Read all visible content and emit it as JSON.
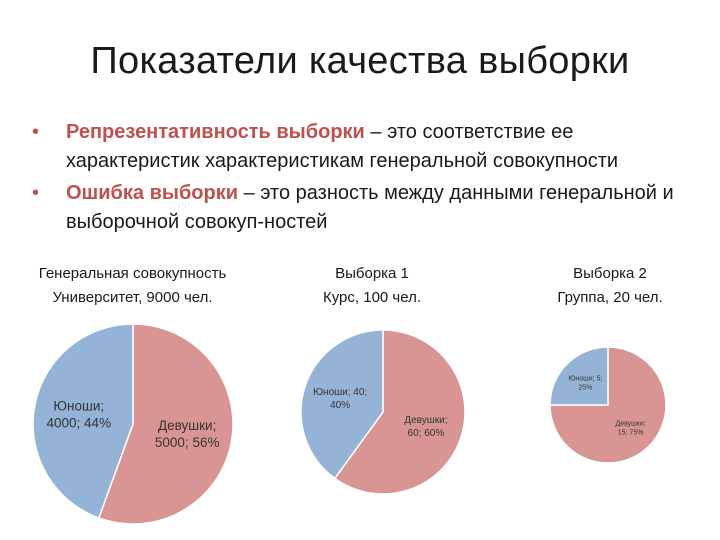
{
  "slide": {
    "title": "Показатели качества выборки",
    "bullets": [
      {
        "term": "Репрезентативность выборки",
        "text": " – это соответствие ее характеристик характеристикам генеральной совокупности"
      },
      {
        "term": "Ошибка выборки",
        "text": " – это разность между данными генеральной и выборочной совокуп-ностей"
      }
    ]
  },
  "colors": {
    "accent": "#c0504d",
    "slice_female": "#d99594",
    "slice_male": "#95b3d7"
  },
  "chart_data": [
    {
      "type": "pie",
      "title_lines": [
        "Генеральная совокупность",
        "Университет, 9000 чел."
      ],
      "slices": [
        {
          "label_lines": [
            "Юноши;",
            "4000; 44%"
          ],
          "value": 4000,
          "percent": 44,
          "color": "#95b3d7"
        },
        {
          "label_lines": [
            "Девушки;",
            "5000; 56%"
          ],
          "value": 5000,
          "percent": 56,
          "color": "#d99594"
        }
      ]
    },
    {
      "type": "pie",
      "title_lines": [
        "Выборка 1",
        "Курс, 100 чел."
      ],
      "slices": [
        {
          "label_lines": [
            "Юноши; 40;",
            "40%"
          ],
          "value": 40,
          "percent": 40,
          "color": "#95b3d7"
        },
        {
          "label_lines": [
            "Девушки;",
            "60; 60%"
          ],
          "value": 60,
          "percent": 60,
          "color": "#d99594"
        }
      ]
    },
    {
      "type": "pie",
      "title_lines": [
        "Выборка 2",
        "Группа, 20 чел."
      ],
      "slices": [
        {
          "label_lines": [
            "Юноши; 5;",
            "25%"
          ],
          "value": 5,
          "percent": 25,
          "color": "#95b3d7"
        },
        {
          "label_lines": [
            "Девушки;",
            "15; 75%"
          ],
          "value": 15,
          "percent": 75,
          "color": "#d99594"
        }
      ]
    }
  ]
}
